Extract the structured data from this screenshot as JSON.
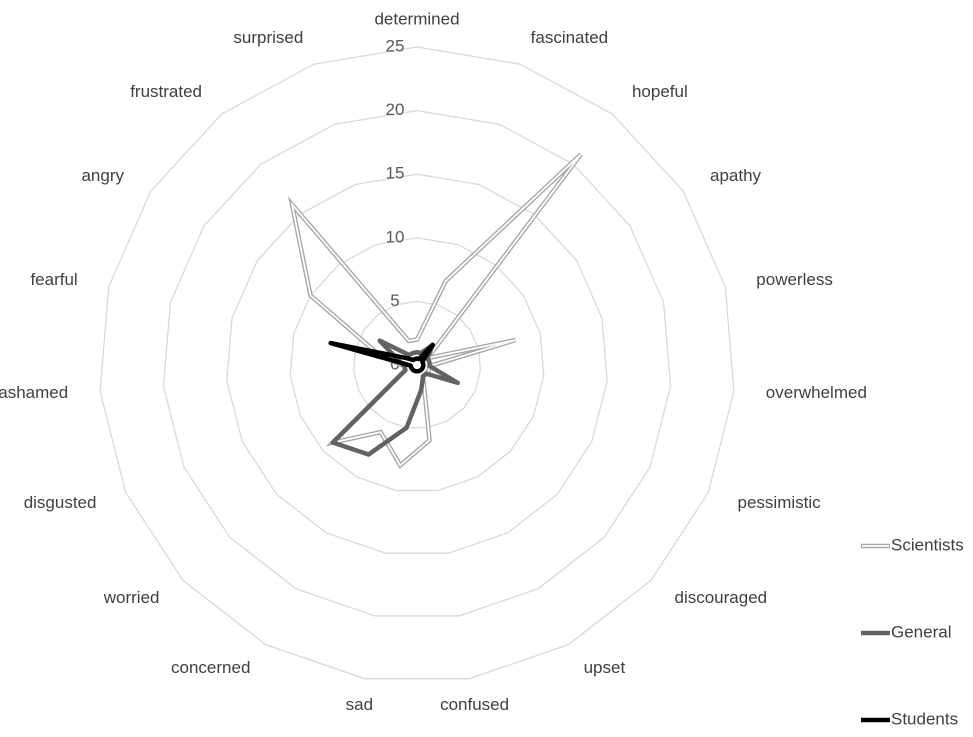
{
  "chart_data": {
    "type": "radar",
    "categories": [
      "determined",
      "fascinated",
      "hopeful",
      "apathy",
      "powerless",
      "overwhelmed",
      "pessimistic",
      "discouraged",
      "upset",
      "confused",
      "sad",
      "concerned",
      "worried",
      "disgusted",
      "ashamed",
      "fearful",
      "angry",
      "frustrated",
      "surprised"
    ],
    "series": [
      {
        "name": "Scientists",
        "color": "#a6a6a6",
        "values": [
          2,
          7,
          21,
          1,
          8,
          1,
          1,
          1,
          1,
          6,
          8,
          6,
          9,
          1,
          1,
          3,
          10,
          16,
          2
        ]
      },
      {
        "name": "General",
        "color": "#636363",
        "values": [
          1,
          1,
          2,
          1,
          1,
          1,
          3.5,
          1,
          1,
          2,
          5,
          8,
          9,
          1,
          1,
          1.5,
          3.5,
          1,
          1
        ]
      },
      {
        "name": "Students",
        "color": "#000000",
        "values": [
          0.5,
          0.5,
          2,
          0.5,
          0.5,
          0.5,
          0.5,
          0.5,
          0.5,
          0.5,
          0.5,
          0.5,
          0.5,
          0.5,
          0.5,
          7,
          1,
          0.5,
          0.5
        ]
      }
    ],
    "ylim": [
      0,
      25
    ],
    "yticks": [
      0,
      5,
      10,
      15,
      20,
      25
    ],
    "grid": true,
    "legend": "right"
  }
}
